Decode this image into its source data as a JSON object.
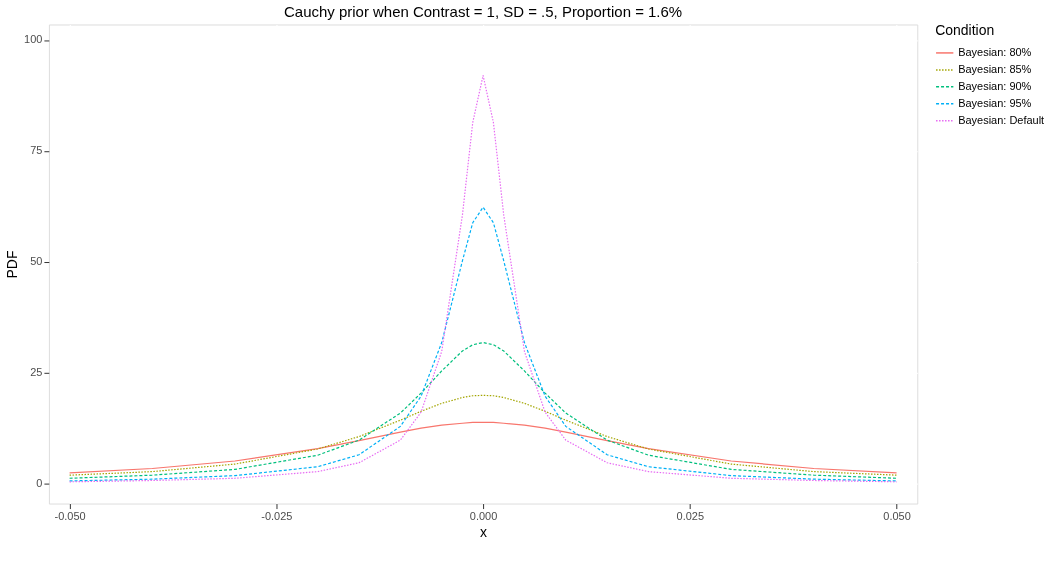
{
  "chart_data": {
    "type": "line",
    "title": "Cauchy prior when Contrast = 1, SD = .5, Proportion = 1.6%",
    "xlabel": "x",
    "ylabel": "PDF",
    "legend_title": "Condition",
    "legend": "right",
    "grid": true,
    "marker": "none",
    "x": [
      -0.05,
      -0.04,
      -0.03,
      -0.02,
      -0.015,
      -0.01,
      -0.0075,
      -0.005,
      -0.0025,
      -0.00125,
      0,
      0.00125,
      0.0025,
      0.005,
      0.0075,
      0.01,
      0.015,
      0.02,
      0.03,
      0.04,
      0.05
    ],
    "xlim": [
      -0.0525,
      0.0525
    ],
    "xticks": [
      {
        "value": -0.05,
        "label": "-0.050"
      },
      {
        "value": -0.025,
        "label": "-0.025"
      },
      {
        "value": 0,
        "label": "0.000"
      },
      {
        "value": 0.025,
        "label": "0.025"
      },
      {
        "value": 0.05,
        "label": "0.050"
      }
    ],
    "ylim": [
      -4.5,
      103.5
    ],
    "yticks": [
      0,
      25,
      50,
      75,
      100
    ],
    "series": [
      {
        "name": "Bayesian: 80%",
        "color": "#F8766D",
        "line_style": "solid",
        "values": [
          2.4,
          3.4,
          5.1,
          7.9,
          9.7,
          11.6,
          12.5,
          13.2,
          13.6,
          13.8,
          13.8,
          13.8,
          13.6,
          13.2,
          12.5,
          11.6,
          9.7,
          7.9,
          5.1,
          3.4,
          2.4
        ]
      },
      {
        "name": "Bayesian: 85%",
        "color": "#A3A500",
        "line_style": "dotted",
        "values": [
          1.9,
          2.7,
          4.4,
          7.8,
          10.6,
          14.3,
          16.3,
          18.1,
          19.4,
          19.8,
          19.9,
          19.8,
          19.4,
          18.1,
          16.3,
          14.3,
          10.6,
          7.8,
          4.4,
          2.7,
          1.9
        ]
      },
      {
        "name": "Bayesian: 90%",
        "color": "#00BF7D",
        "line_style": "dashed",
        "values": [
          1.2,
          1.9,
          3.2,
          6.4,
          9.8,
          15.9,
          20.4,
          25.4,
          29.9,
          31.3,
          31.8,
          31.3,
          29.9,
          25.4,
          20.4,
          15.9,
          9.8,
          6.4,
          3.2,
          1.9,
          1.2
        ]
      },
      {
        "name": "Bayesian: 95%",
        "color": "#00B0F6",
        "line_style": "dashed",
        "values": [
          0.6,
          1.0,
          1.8,
          3.8,
          6.5,
          12.9,
          19.7,
          31.8,
          50.2,
          58.8,
          62.3,
          58.8,
          50.2,
          31.8,
          19.7,
          12.9,
          6.5,
          3.8,
          1.8,
          1.0,
          0.6
        ]
      },
      {
        "name": "Bayesian: Default",
        "color": "#E76BF3",
        "line_style": "dotted",
        "values": [
          0.4,
          0.7,
          1.2,
          2.7,
          4.7,
          9.8,
          16.1,
          29.8,
          60.5,
          81.4,
          92,
          81.4,
          60.5,
          29.8,
          16.1,
          9.8,
          4.7,
          2.7,
          1.2,
          0.7,
          0.4
        ]
      }
    ]
  }
}
